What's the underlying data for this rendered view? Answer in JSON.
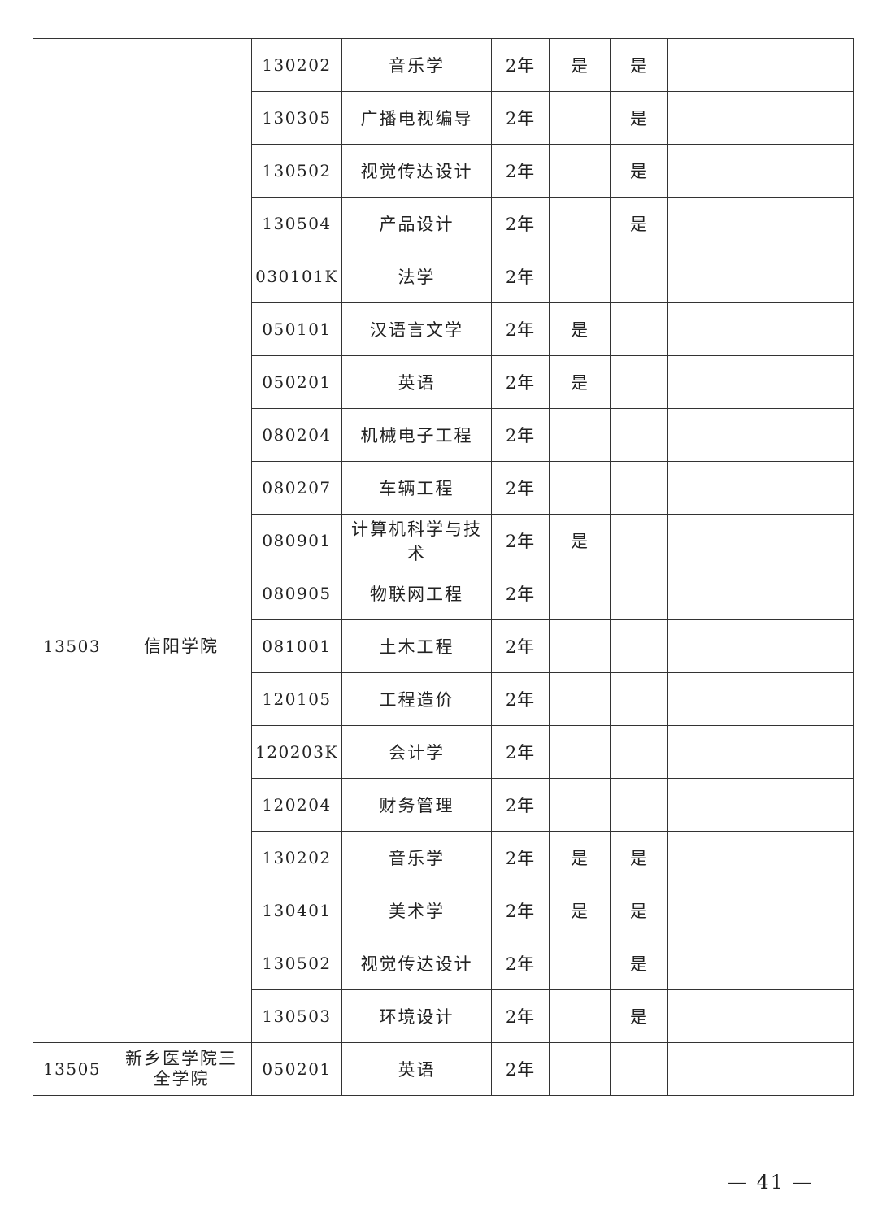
{
  "groups": [
    {
      "school_code": "",
      "school_name": "",
      "rows": [
        {
          "code": "130202",
          "major": "音乐学",
          "years": "2年",
          "col5": "是",
          "col6": "是",
          "note": ""
        },
        {
          "code": "130305",
          "major": "广播电视编导",
          "years": "2年",
          "col5": "",
          "col6": "是",
          "note": ""
        },
        {
          "code": "130502",
          "major": "视觉传达设计",
          "years": "2年",
          "col5": "",
          "col6": "是",
          "note": ""
        },
        {
          "code": "130504",
          "major": "产品设计",
          "years": "2年",
          "col5": "",
          "col6": "是",
          "note": ""
        }
      ]
    },
    {
      "school_code": "13503",
      "school_name": "信阳学院",
      "rows": [
        {
          "code": "030101K",
          "major": "法学",
          "years": "2年",
          "col5": "",
          "col6": "",
          "note": ""
        },
        {
          "code": "050101",
          "major": "汉语言文学",
          "years": "2年",
          "col5": "是",
          "col6": "",
          "note": ""
        },
        {
          "code": "050201",
          "major": "英语",
          "years": "2年",
          "col5": "是",
          "col6": "",
          "note": ""
        },
        {
          "code": "080204",
          "major": "机械电子工程",
          "years": "2年",
          "col5": "",
          "col6": "",
          "note": ""
        },
        {
          "code": "080207",
          "major": "车辆工程",
          "years": "2年",
          "col5": "",
          "col6": "",
          "note": ""
        },
        {
          "code": "080901",
          "major": "计算机科学与技术",
          "years": "2年",
          "col5": "是",
          "col6": "",
          "note": ""
        },
        {
          "code": "080905",
          "major": "物联网工程",
          "years": "2年",
          "col5": "",
          "col6": "",
          "note": ""
        },
        {
          "code": "081001",
          "major": "土木工程",
          "years": "2年",
          "col5": "",
          "col6": "",
          "note": ""
        },
        {
          "code": "120105",
          "major": "工程造价",
          "years": "2年",
          "col5": "",
          "col6": "",
          "note": ""
        },
        {
          "code": "120203K",
          "major": "会计学",
          "years": "2年",
          "col5": "",
          "col6": "",
          "note": ""
        },
        {
          "code": "120204",
          "major": "财务管理",
          "years": "2年",
          "col5": "",
          "col6": "",
          "note": ""
        },
        {
          "code": "130202",
          "major": "音乐学",
          "years": "2年",
          "col5": "是",
          "col6": "是",
          "note": ""
        },
        {
          "code": "130401",
          "major": "美术学",
          "years": "2年",
          "col5": "是",
          "col6": "是",
          "note": ""
        },
        {
          "code": "130502",
          "major": "视觉传达设计",
          "years": "2年",
          "col5": "",
          "col6": "是",
          "note": ""
        },
        {
          "code": "130503",
          "major": "环境设计",
          "years": "2年",
          "col5": "",
          "col6": "是",
          "note": ""
        }
      ]
    },
    {
      "school_code": "13505",
      "school_name": "新乡医学院三全学院",
      "rows": [
        {
          "code": "050201",
          "major": "英语",
          "years": "2年",
          "col5": "",
          "col6": "",
          "note": ""
        }
      ]
    }
  ],
  "page_number": "— 41 —"
}
